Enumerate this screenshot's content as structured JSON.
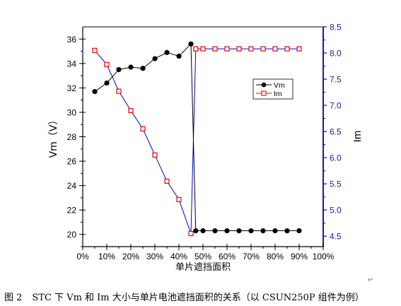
{
  "caption": {
    "figure_number": "图 2",
    "text": "STC 下 Vm 和 Im 大小与单片电池遮挡面积的关系（以 CSUN250P 组件为例）"
  },
  "paragraph_mark": "↵",
  "colors": {
    "vm_series": "#000000",
    "im_series": "#ee0000",
    "im_line": "#0000cc",
    "right_axis": "#1a1aa8",
    "left_axis": "#000000"
  },
  "chart_data": {
    "type": "line",
    "xlabel": "单片遮挡面积",
    "ylabel_left": "Vm（V）",
    "ylabel_right": "Im",
    "x_ticks": [
      "0%",
      "10%",
      "20%",
      "30%",
      "40%",
      "50%",
      "60%",
      "70%",
      "80%",
      "90%",
      "100%"
    ],
    "xlim": [
      0,
      100
    ],
    "ylim_left": [
      19,
      37
    ],
    "ylim_right": [
      4.3,
      8.5
    ],
    "y_ticks_left": [
      "20",
      "22",
      "24",
      "26",
      "28",
      "30",
      "32",
      "34",
      "36"
    ],
    "y_ticks_right": [
      "4.5",
      "5.0",
      "5.5",
      "6.0",
      "6.5",
      "7.0",
      "7.5",
      "8.0",
      "8.5"
    ],
    "legend_position": "upper-right",
    "series": [
      {
        "name": "Vm",
        "axis": "left",
        "marker": "filled-circle",
        "x": [
          5,
          10,
          15,
          20,
          25,
          30,
          35,
          40,
          45,
          47,
          50,
          55,
          60,
          65,
          70,
          75,
          80,
          85,
          90
        ],
        "y": [
          31.7,
          32.4,
          33.5,
          33.7,
          33.6,
          34.4,
          34.9,
          34.6,
          35.6,
          20.3,
          20.3,
          20.3,
          20.3,
          20.3,
          20.3,
          20.3,
          20.3,
          20.3,
          20.3
        ]
      },
      {
        "name": "Im",
        "axis": "right",
        "marker": "open-square",
        "x": [
          5,
          10,
          15,
          20,
          25,
          30,
          35,
          40,
          45,
          47,
          50,
          55,
          60,
          65,
          70,
          75,
          80,
          85,
          90
        ],
        "y": [
          8.05,
          7.78,
          7.27,
          6.9,
          6.55,
          6.05,
          5.55,
          5.2,
          4.55,
          8.08,
          8.08,
          8.08,
          8.08,
          8.08,
          8.08,
          8.08,
          8.08,
          8.08,
          8.08
        ]
      }
    ]
  }
}
